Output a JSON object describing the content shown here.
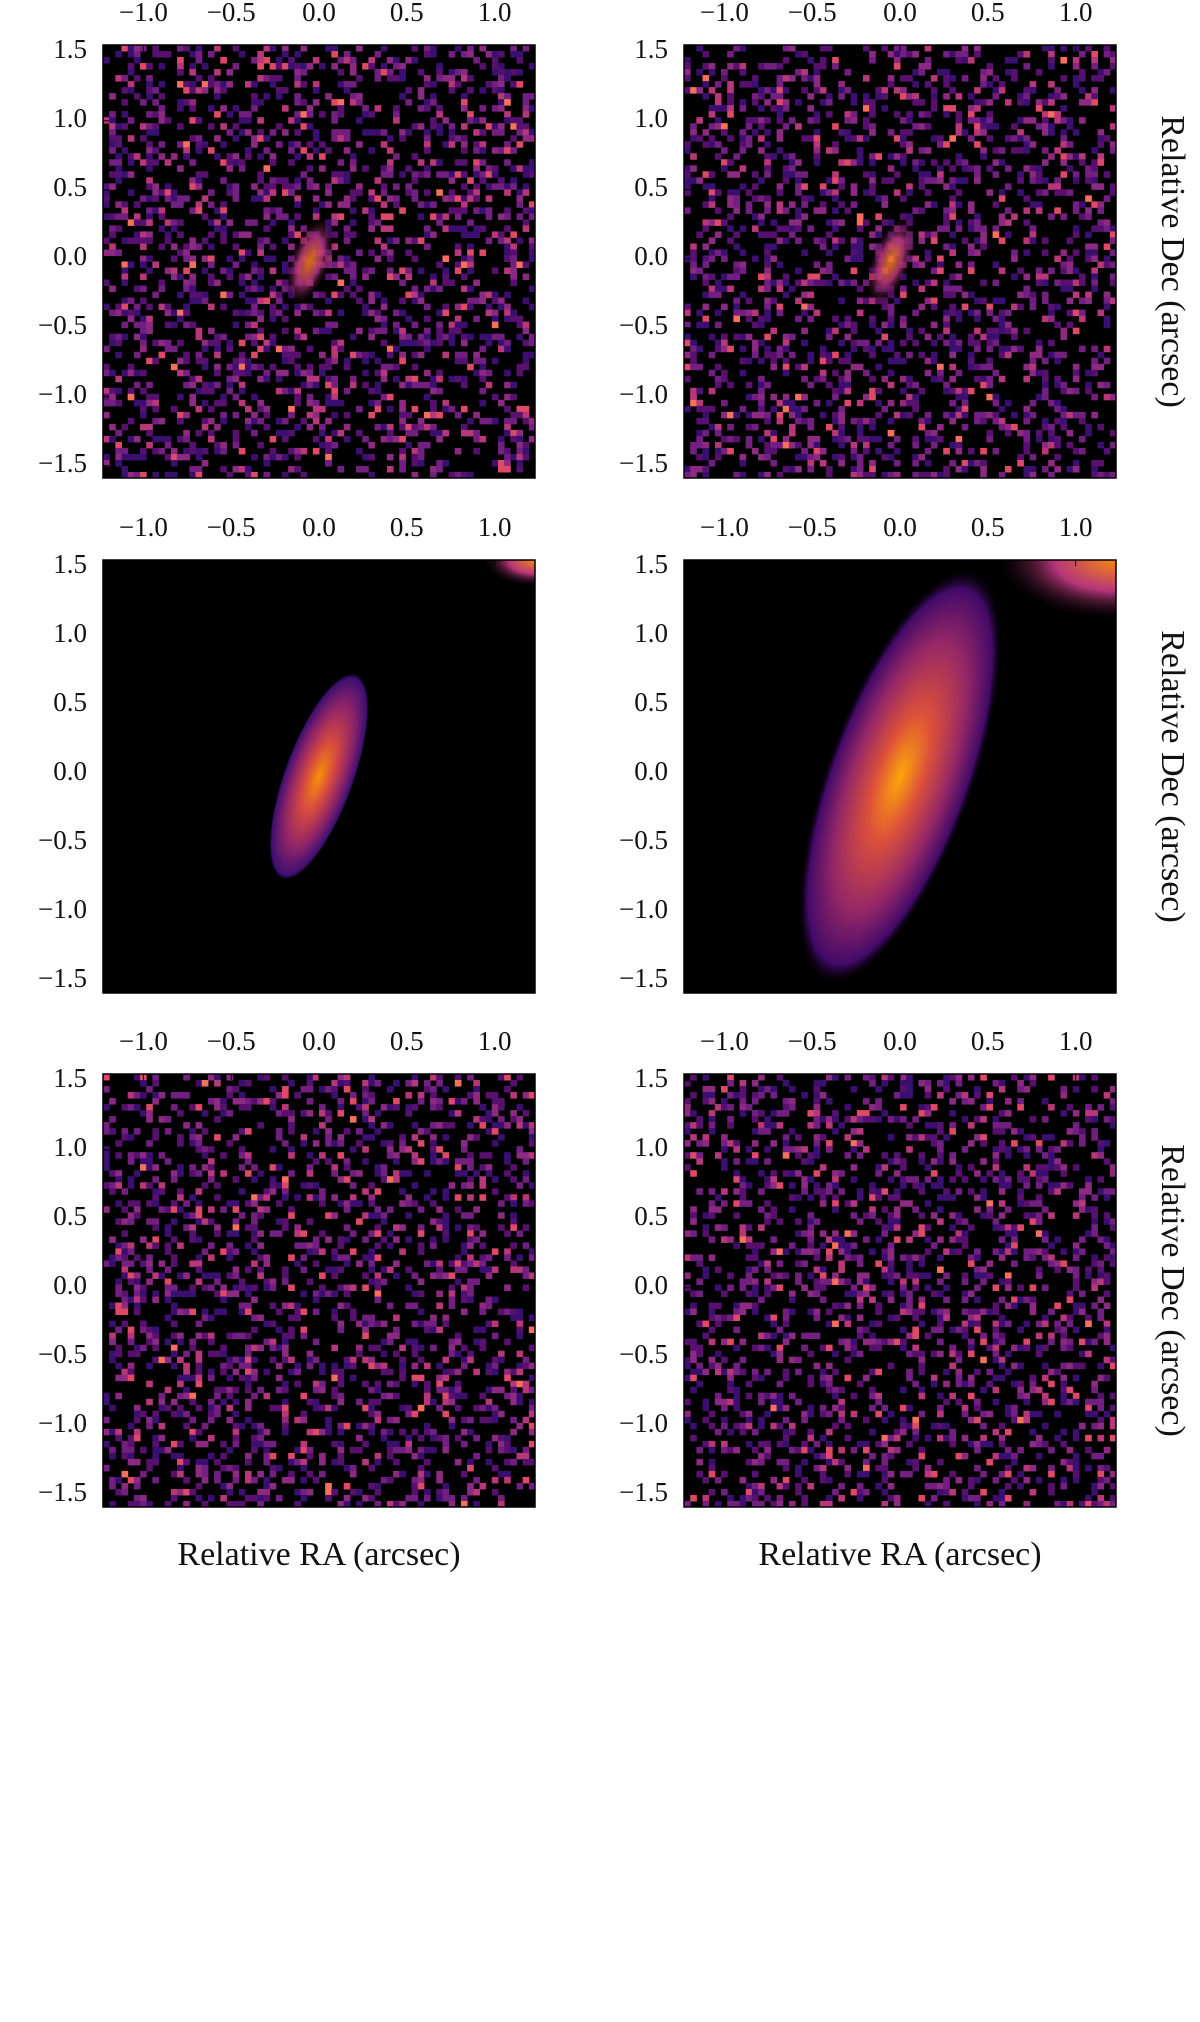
{
  "chart_data": [
    {
      "type": "image",
      "xlim": [
        -1.23,
        1.23
      ],
      "ylim": [
        -1.59,
        1.55
      ],
      "xticks": [
        {
          "value": -1,
          "label": "−1.0"
        },
        {
          "value": -0.5,
          "label": "−0.5"
        },
        {
          "value": 0,
          "label": "0.0"
        },
        0.5,
        {
          "value": 1,
          "label": "1.0"
        }
      ],
      "yticks": [
        {
          "value": -1.5,
          "label": "−1.5"
        },
        {
          "value": -1,
          "label": "−1.0"
        },
        {
          "value": -0.5,
          "label": "−0.5"
        },
        {
          "value": 0,
          "label": "0.0"
        },
        0.5,
        {
          "value": 1,
          "label": "1.0"
        },
        1.5
      ]
    },
    {
      "type": "image",
      "xlim": [
        -1.23,
        1.23
      ],
      "ylim": [
        -1.59,
        1.55
      ],
      "ylabel": "Relative Dec (arcsec)",
      "xticks": [
        {
          "value": -1,
          "label": "−1.0"
        },
        {
          "value": -0.5,
          "label": "−0.5"
        },
        {
          "value": 0,
          "label": "0.0"
        },
        0.5,
        {
          "value": 1,
          "label": "1.0"
        }
      ],
      "yticks": [
        {
          "value": -1.5,
          "label": "−1.5"
        },
        {
          "value": -1,
          "label": "−1.0"
        },
        {
          "value": -0.5,
          "label": "−0.5"
        },
        {
          "value": 0,
          "label": "0.0"
        },
        0.5,
        {
          "value": 1,
          "label": "1.0"
        },
        1.5
      ]
    },
    {
      "type": "image",
      "xlim": [
        -1.23,
        1.23
      ],
      "ylim": [
        -1.59,
        1.55
      ],
      "xticks": [
        {
          "value": -1,
          "label": "−1.0"
        },
        {
          "value": -0.5,
          "label": "−0.5"
        },
        {
          "value": 0,
          "label": "0.0"
        },
        0.5,
        {
          "value": 1,
          "label": "1.0"
        }
      ],
      "yticks": [
        {
          "value": -1.5,
          "label": "−1.5"
        },
        {
          "value": -1,
          "label": "−1.0"
        },
        {
          "value": -0.5,
          "label": "−0.5"
        },
        {
          "value": 0,
          "label": "0.0"
        },
        0.5,
        {
          "value": 1,
          "label": "1.0"
        },
        1.5
      ]
    },
    {
      "type": "image",
      "xlim": [
        -1.23,
        1.23
      ],
      "ylim": [
        -1.59,
        1.55
      ],
      "ylabel": "Relative Dec (arcsec)",
      "xticks": [
        {
          "value": -1,
          "label": "−1.0"
        },
        {
          "value": -0.5,
          "label": "−0.5"
        },
        {
          "value": 0,
          "label": "0.0"
        },
        0.5,
        {
          "value": 1,
          "label": "1.0"
        }
      ],
      "yticks": [
        {
          "value": -1.5,
          "label": "−1.5"
        },
        {
          "value": -1,
          "label": "−1.0"
        },
        {
          "value": -0.5,
          "label": "−0.5"
        },
        {
          "value": 0,
          "label": "0.0"
        },
        0.5,
        {
          "value": 1,
          "label": "1.0"
        },
        1.5
      ]
    },
    {
      "type": "image",
      "xlim": [
        -1.23,
        1.23
      ],
      "ylim": [
        -1.59,
        1.55
      ],
      "xlabel": "Relative RA (arcsec)",
      "xticks": [
        {
          "value": -1,
          "label": "−1.0"
        },
        {
          "value": -0.5,
          "label": "−0.5"
        },
        {
          "value": 0,
          "label": "0.0"
        },
        0.5,
        {
          "value": 1,
          "label": "1.0"
        }
      ],
      "yticks": [
        {
          "value": -1.5,
          "label": "−1.5"
        },
        {
          "value": -1,
          "label": "−1.0"
        },
        {
          "value": -0.5,
          "label": "−0.5"
        },
        {
          "value": 0,
          "label": "0.0"
        },
        0.5,
        {
          "value": 1,
          "label": "1.0"
        },
        1.5
      ]
    },
    {
      "type": "image",
      "xlim": [
        -1.23,
        1.23
      ],
      "ylim": [
        -1.59,
        1.55
      ],
      "xlabel": "Relative RA (arcsec)",
      "ylabel": "Relative Dec (arcsec)",
      "xticks": [
        {
          "value": -1,
          "label": "−1.0"
        },
        {
          "value": -0.5,
          "label": "−0.5"
        },
        {
          "value": 0,
          "label": "0.0"
        },
        0.5,
        {
          "value": 1,
          "label": "1.0"
        }
      ],
      "yticks": [
        {
          "value": -1.5,
          "label": "−1.5"
        },
        {
          "value": -1,
          "label": "−1.0"
        },
        {
          "value": -0.5,
          "label": "−0.5"
        },
        {
          "value": 0,
          "label": "0.0"
        },
        0.5,
        {
          "value": 1,
          "label": "1.0"
        },
        1.5
      ]
    }
  ]
}
